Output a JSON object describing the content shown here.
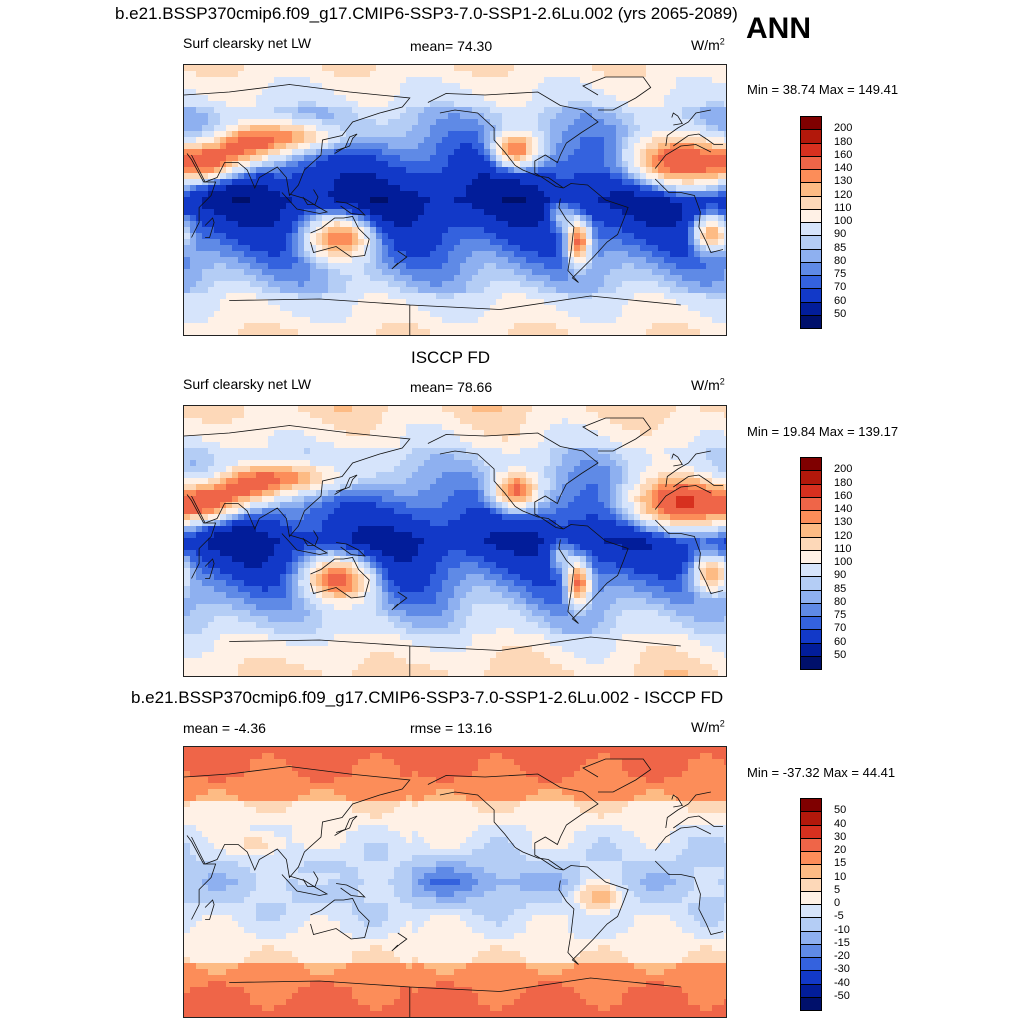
{
  "chart_data": [
    {
      "type": "heatmap",
      "title": "b.e21.BSSP370cmip6.f09_g17.CMIP6-SSP3-7.0-SSP1-2.6Lu.002 (yrs 2065-2089)",
      "left_label": "Surf clearsky net LW",
      "center_label": "mean=  74.30",
      "units": "W/m",
      "units_sup": "2",
      "minmax": "Min =  38.74 Max = 149.41",
      "colorbar_levels": [
        "200",
        "180",
        "160",
        "140",
        "130",
        "120",
        "110",
        "100",
        "90",
        "85",
        "80",
        "75",
        "70",
        "60",
        "50"
      ],
      "colorbar_colors": [
        "#7f0000",
        "#b2180b",
        "#d7301f",
        "#ef6548",
        "#fc8d59",
        "#fdbb84",
        "#fdd8b8",
        "#fff1e6",
        "#d6e4fb",
        "#b4cdf5",
        "#8eb0f0",
        "#5f8ae6",
        "#3462de",
        "#1239c8",
        "#021d9a",
        "#00106b"
      ],
      "kind": "model",
      "panel_mean": 74.3
    },
    {
      "type": "heatmap",
      "title": "ISCCP FD",
      "left_label": "Surf clearsky net LW",
      "center_label": "mean=  78.66",
      "units": "W/m",
      "units_sup": "2",
      "minmax": "Min =  19.84 Max = 139.17",
      "colorbar_levels": [
        "200",
        "180",
        "160",
        "140",
        "130",
        "120",
        "110",
        "100",
        "90",
        "85",
        "80",
        "75",
        "70",
        "60",
        "50"
      ],
      "colorbar_colors": [
        "#7f0000",
        "#b2180b",
        "#d7301f",
        "#ef6548",
        "#fc8d59",
        "#fdbb84",
        "#fdd8b8",
        "#fff1e6",
        "#d6e4fb",
        "#b4cdf5",
        "#8eb0f0",
        "#5f8ae6",
        "#3462de",
        "#1239c8",
        "#021d9a",
        "#00106b"
      ],
      "kind": "obs",
      "panel_mean": 78.66
    },
    {
      "type": "heatmap",
      "title": "b.e21.BSSP370cmip6.f09_g17.CMIP6-SSP3-7.0-SSP1-2.6Lu.002 - ISCCP FD",
      "left_label": "mean =  -4.36",
      "center_label": "rmse =  13.16",
      "units": "W/m",
      "units_sup": "2",
      "minmax": "Min = -37.32 Max =  44.41",
      "colorbar_levels": [
        "50",
        "40",
        "30",
        "20",
        "15",
        "10",
        "5",
        "0",
        "-5",
        "-10",
        "-15",
        "-20",
        "-30",
        "-40",
        "-50"
      ],
      "colorbar_colors": [
        "#7f0000",
        "#b2180b",
        "#d7301f",
        "#ef6548",
        "#fc8d59",
        "#fdbb84",
        "#fdd8b8",
        "#fff1e6",
        "#d6e4fb",
        "#b4cdf5",
        "#8eb0f0",
        "#5f8ae6",
        "#3462de",
        "#1239c8",
        "#021d9a",
        "#00106b"
      ],
      "kind": "diff",
      "panel_mean": -4.36
    }
  ],
  "season_label": "ANN"
}
